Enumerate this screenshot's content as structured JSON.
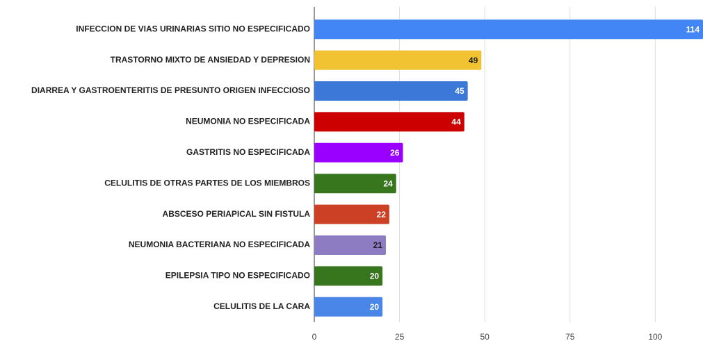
{
  "chart_data": {
    "type": "bar",
    "orientation": "horizontal",
    "categories": [
      "INFECCION DE VIAS URINARIAS SITIO NO ESPECIFICADO",
      "TRASTORNO MIXTO DE ANSIEDAD Y DEPRESION",
      "DIARREA Y GASTROENTERITIS DE PRESUNTO ORIGEN INFECCIOSO",
      "NEUMONIA NO ESPECIFICADA",
      "GASTRITIS NO ESPECIFICADA",
      "CELULITIS DE OTRAS PARTES DE LOS MIEMBROS",
      "ABSCESO PERIAPICAL SIN FISTULA",
      "NEUMONIA BACTERIANA NO ESPECIFICADA",
      "EPILEPSIA TIPO NO ESPECIFICADO",
      "CELULITIS DE LA CARA"
    ],
    "values": [
      114,
      49,
      45,
      44,
      26,
      24,
      22,
      21,
      20,
      20
    ],
    "colors": [
      "#4285f4",
      "#f1c232",
      "#3c78d8",
      "#cc0000",
      "#9900ff",
      "#38761d",
      "#cc4125",
      "#8e7cc3",
      "#38761d",
      "#4a86e8"
    ],
    "value_label_colors": [
      "#ffffff",
      "#222222",
      "#ffffff",
      "#ffffff",
      "#ffffff",
      "#ffffff",
      "#ffffff",
      "#222222",
      "#ffffff",
      "#ffffff"
    ],
    "xlim": [
      0,
      114
    ],
    "xticks": [
      0,
      25,
      50,
      75,
      100
    ],
    "grid": true
  }
}
